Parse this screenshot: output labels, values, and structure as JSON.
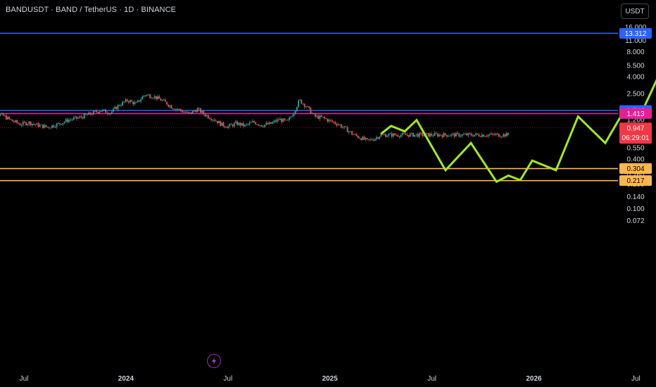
{
  "header": {
    "symbol_title": "BANDUSDT · BAND / TetherUS · 1D · BINANCE",
    "currency_button": "USDT"
  },
  "colors": {
    "background": "#000000",
    "candle_up": "#26a69a",
    "candle_down": "#ef5350",
    "projection": "#a5e81b",
    "blue_line": "#2962ff",
    "magenta_line": "#e91e96",
    "orange_line": "#ffb74d",
    "red_label": "#f23645",
    "axis_text": "#d1d4dc"
  },
  "chart_data": {
    "type": "line",
    "title": "",
    "xlabel": "",
    "ylabel": "",
    "scale": "log",
    "grid": false,
    "ylim": [
      0.072,
      16.0
    ],
    "y_ticks": [
      "16.000",
      "11.000",
      "8.000",
      "5.500",
      "4.000",
      "2.500",
      "1.200",
      "0.550",
      "0.400",
      "0.260",
      "0.200",
      "0.140",
      "0.100",
      "0.072"
    ],
    "x_ticks": [
      "Jul",
      "2024",
      "Jul",
      "2025",
      "Jul",
      "2026",
      "Jul"
    ],
    "x_tick_months": [
      0,
      6,
      12,
      18,
      24,
      30,
      36
    ],
    "price_history": {
      "x_month_range": [
        -2.3,
        28.5
      ],
      "points": [
        {
          "m": -2.3,
          "v": 1.65
        },
        {
          "m": -1.8,
          "v": 1.45
        },
        {
          "m": -1.2,
          "v": 1.32
        },
        {
          "m": -0.7,
          "v": 1.15
        },
        {
          "m": -0.2,
          "v": 1.05
        },
        {
          "m": 0.3,
          "v": 1.1
        },
        {
          "m": 0.8,
          "v": 1.02
        },
        {
          "m": 1.4,
          "v": 0.97
        },
        {
          "m": 2.0,
          "v": 1.05
        },
        {
          "m": 2.6,
          "v": 1.18
        },
        {
          "m": 3.2,
          "v": 1.25
        },
        {
          "m": 3.9,
          "v": 1.4
        },
        {
          "m": 4.5,
          "v": 1.55
        },
        {
          "m": 5.1,
          "v": 1.45
        },
        {
          "m": 5.6,
          "v": 1.8
        },
        {
          "m": 6.1,
          "v": 2.05
        },
        {
          "m": 6.6,
          "v": 1.85
        },
        {
          "m": 7.1,
          "v": 2.4
        },
        {
          "m": 7.6,
          "v": 2.3
        },
        {
          "m": 8.2,
          "v": 2.0
        },
        {
          "m": 8.7,
          "v": 1.7
        },
        {
          "m": 9.2,
          "v": 1.55
        },
        {
          "m": 9.7,
          "v": 1.4
        },
        {
          "m": 10.2,
          "v": 1.6
        },
        {
          "m": 10.7,
          "v": 1.35
        },
        {
          "m": 11.2,
          "v": 1.2
        },
        {
          "m": 11.6,
          "v": 1.05
        },
        {
          "m": 12.0,
          "v": 0.98
        },
        {
          "m": 12.5,
          "v": 1.08
        },
        {
          "m": 13.0,
          "v": 1.0
        },
        {
          "m": 13.5,
          "v": 1.12
        },
        {
          "m": 14.0,
          "v": 1.02
        },
        {
          "m": 14.5,
          "v": 1.06
        },
        {
          "m": 15.0,
          "v": 1.2
        },
        {
          "m": 15.5,
          "v": 1.12
        },
        {
          "m": 15.9,
          "v": 1.5
        },
        {
          "m": 16.2,
          "v": 2.05
        },
        {
          "m": 16.6,
          "v": 1.75
        },
        {
          "m": 17.1,
          "v": 1.3
        },
        {
          "m": 17.6,
          "v": 1.25
        },
        {
          "m": 18.0,
          "v": 1.15
        },
        {
          "m": 18.5,
          "v": 1.05
        },
        {
          "m": 19.0,
          "v": 0.9
        },
        {
          "m": 19.4,
          "v": 0.78
        },
        {
          "m": 19.8,
          "v": 0.72
        },
        {
          "m": 20.2,
          "v": 0.66
        },
        {
          "m": 20.6,
          "v": 0.7
        },
        {
          "m": 21.0,
          "v": 0.78
        }
      ]
    },
    "projection_path": [
      {
        "m": 21.0,
        "v": 0.8
      },
      {
        "m": 21.6,
        "v": 1.0
      },
      {
        "m": 22.4,
        "v": 0.86
      },
      {
        "m": 23.1,
        "v": 1.18
      },
      {
        "m": 24.8,
        "v": 0.29
      },
      {
        "m": 26.3,
        "v": 0.62
      },
      {
        "m": 27.8,
        "v": 0.21
      },
      {
        "m": 28.5,
        "v": 0.25
      },
      {
        "m": 29.2,
        "v": 0.22
      },
      {
        "m": 29.9,
        "v": 0.38
      },
      {
        "m": 31.3,
        "v": 0.29
      },
      {
        "m": 32.6,
        "v": 1.3
      },
      {
        "m": 34.2,
        "v": 0.62
      },
      {
        "m": 35.4,
        "v": 1.65
      },
      {
        "m": 36.3,
        "v": 1.4
      },
      {
        "m": 38.4,
        "v": 12.0
      }
    ],
    "horizontal_levels": [
      {
        "name": "blue-top",
        "value": 13.312,
        "label": "13.312",
        "color": "#2962ff",
        "text_color": "#ffffff"
      },
      {
        "name": "blue-mid",
        "value": 1.541,
        "label": "1.541",
        "color": "#2962ff",
        "text_color": "#ffffff"
      },
      {
        "name": "magenta",
        "value": 1.413,
        "label": "1.413",
        "color": "#e91e96",
        "text_color": "#ffffff"
      },
      {
        "name": "orange-upper",
        "value": 0.304,
        "label": "0.304",
        "color": "#ffb74d",
        "text_color": "#000000"
      },
      {
        "name": "orange-lower",
        "value": 0.217,
        "label": "0.217",
        "color": "#ffb74d",
        "text_color": "#000000"
      }
    ],
    "current_price": {
      "value": 0.947,
      "label": "0.947",
      "countdown": "06:29:01",
      "color": "#f23645"
    }
  }
}
